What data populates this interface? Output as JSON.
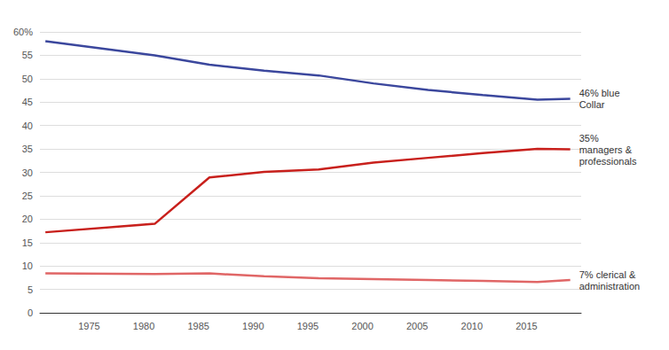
{
  "chart_data": {
    "type": "line",
    "x": [
      1971,
      1981,
      1986,
      1991,
      1996,
      2001,
      2006,
      2011,
      2016,
      2019
    ],
    "series": [
      {
        "name": "46% blue Collar",
        "color": "#3b479d",
        "values": [
          58,
          55,
          53,
          51.7,
          50.7,
          49,
          47.6,
          46.5,
          45.5,
          45.7
        ]
      },
      {
        "name": "35% managers & professionals",
        "color": "#c8201c",
        "values": [
          17.2,
          19,
          28.9,
          30.1,
          30.6,
          32.1,
          33.1,
          34.1,
          35,
          34.9
        ]
      },
      {
        "name": "7% clerical & administration",
        "color": "#e06666",
        "values": [
          8.4,
          8.3,
          8.4,
          7.8,
          7.4,
          7.2,
          7.0,
          6.8,
          6.6,
          7.0
        ]
      }
    ],
    "xlim": [
      1970.5,
      2020
    ],
    "xticks": [
      1975,
      1980,
      1985,
      1990,
      1995,
      2000,
      2005,
      2010,
      2015
    ],
    "ylim": [
      0,
      60
    ],
    "yticks": [
      0,
      5,
      10,
      15,
      20,
      25,
      30,
      35,
      40,
      45,
      50,
      55,
      {
        "value": 60,
        "label": "60%"
      }
    ],
    "grid": true
  }
}
